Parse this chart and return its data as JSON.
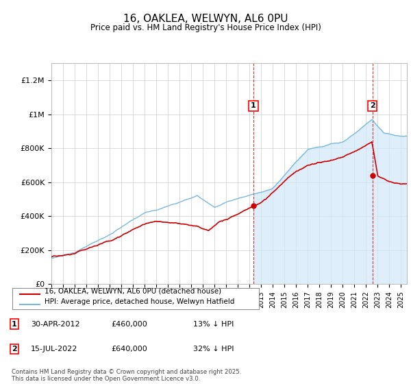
{
  "title": "16, OAKLEA, WELWYN, AL6 0PU",
  "subtitle": "Price paid vs. HM Land Registry's House Price Index (HPI)",
  "ylabel_ticks": [
    "£0",
    "£200K",
    "£400K",
    "£600K",
    "£800K",
    "£1M",
    "£1.2M"
  ],
  "ytick_values": [
    0,
    200000,
    400000,
    600000,
    800000,
    1000000,
    1200000
  ],
  "ylim": [
    0,
    1300000
  ],
  "xlim_start": 1995.0,
  "xlim_end": 2025.5,
  "hpi_color": "#7ab8e0",
  "hpi_fill_color": "#d0e8f8",
  "price_color": "#cc0000",
  "marker1_x": 2012.33,
  "marker1_y": 460000,
  "marker2_x": 2022.54,
  "marker2_y": 640000,
  "legend_entries": [
    "16, OAKLEA, WELWYN, AL6 0PU (detached house)",
    "HPI: Average price, detached house, Welwyn Hatfield"
  ],
  "footer_text": "Contains HM Land Registry data © Crown copyright and database right 2025.\nThis data is licensed under the Open Government Licence v3.0.",
  "table_rows": [
    [
      "1",
      "30-APR-2012",
      "£460,000",
      "13% ↓ HPI"
    ],
    [
      "2",
      "15-JUL-2022",
      "£640,000",
      "32% ↓ HPI"
    ]
  ],
  "background_color": "#ffffff",
  "grid_color": "#cccccc"
}
